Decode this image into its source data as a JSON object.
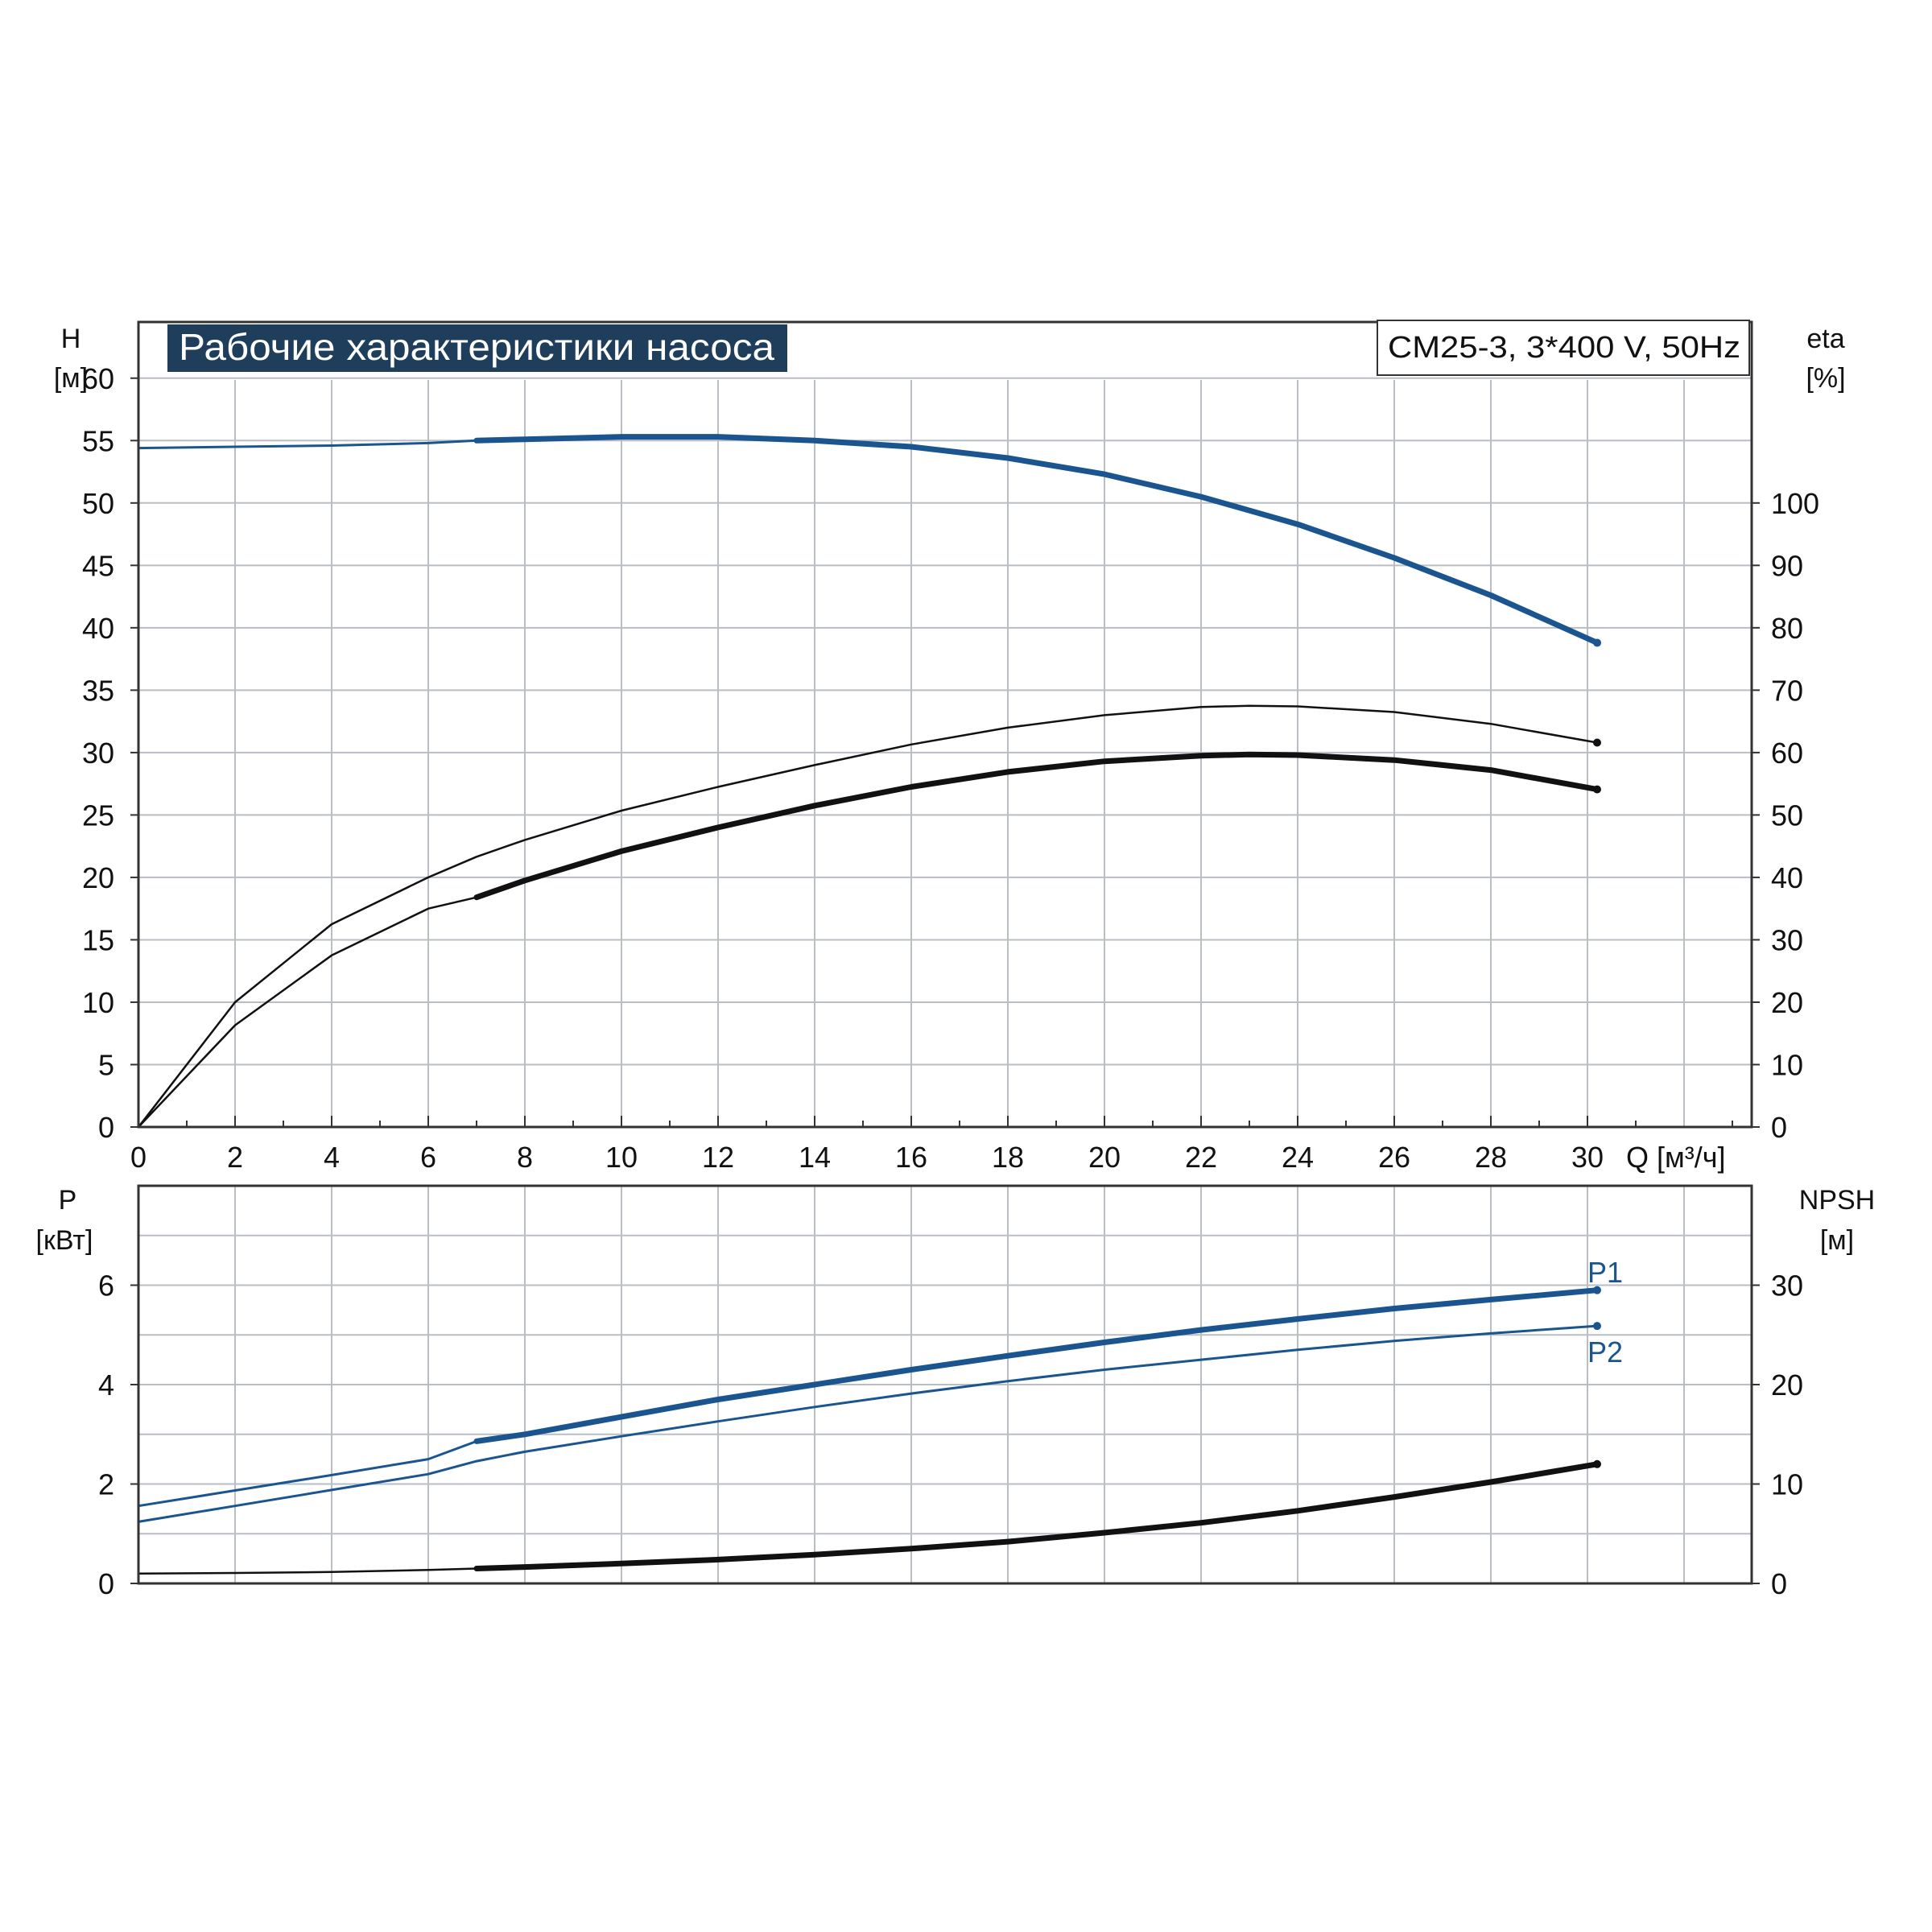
{
  "colors": {
    "blue": "#1a5590",
    "black": "#111111",
    "grid": "#b9bec4",
    "title_bg": "#1f3e5c",
    "title_text": "#ffffff",
    "frame": "#333333"
  },
  "chart_data": [
    {
      "type": "line",
      "title": "Рабочие характеристики насоса",
      "subtitle": "CM25-3, 3*400 V, 50Hz",
      "xlabel": "Q [м³/ч]",
      "ylabel": [
        "H",
        "[м]"
      ],
      "y2label": [
        "eta",
        "[%]"
      ],
      "xlim": [
        0,
        33.4
      ],
      "ylim": [
        0,
        64.5
      ],
      "y2lim": [
        0,
        129
      ],
      "x_ticks": [
        "0",
        "2",
        "4",
        "6",
        "8",
        "10",
        "12",
        "14",
        "16",
        "18",
        "20",
        "22",
        "24",
        "26",
        "28",
        "30"
      ],
      "y_ticks": [
        "0",
        "5",
        "10",
        "15",
        "20",
        "25",
        "30",
        "35",
        "40",
        "45",
        "50",
        "55",
        "60"
      ],
      "y2_ticks": [
        "0",
        "10",
        "20",
        "30",
        "40",
        "50",
        "60",
        "70",
        "80",
        "90",
        "100"
      ],
      "grid": true,
      "series": [
        {
          "axis": "left",
          "color": "blue",
          "x": [
            0,
            2,
            4,
            6,
            7,
            8,
            10,
            12,
            14,
            16,
            18,
            20,
            22,
            24,
            26,
            28,
            30.2
          ],
          "y": [
            54.4,
            54.5,
            54.6,
            54.8,
            55.0,
            55.1,
            55.3,
            55.3,
            55.0,
            54.5,
            53.6,
            52.3,
            50.5,
            48.3,
            45.6,
            42.6,
            38.8
          ],
          "thick_from": 7
        },
        {
          "axis": "right",
          "color": "black",
          "x": [
            0,
            2,
            4,
            6,
            7,
            8,
            10,
            12,
            14,
            16,
            18,
            20,
            22,
            23,
            24,
            26,
            28,
            30.2
          ],
          "y": [
            0,
            20,
            32.5,
            40,
            43.3,
            46,
            50.7,
            54.5,
            58,
            61.3,
            64,
            66,
            67.3,
            67.5,
            67.4,
            66.5,
            64.6,
            61.6
          ],
          "thick_from": null
        },
        {
          "axis": "right",
          "color": "black",
          "x": [
            0,
            2,
            4,
            6,
            7,
            8,
            10,
            12,
            14,
            16,
            18,
            20,
            22,
            23,
            24,
            26,
            28,
            30.2
          ],
          "y": [
            0,
            16.3,
            27.5,
            35,
            36.8,
            39.5,
            44.2,
            48,
            51.5,
            54.5,
            56.9,
            58.6,
            59.5,
            59.7,
            59.6,
            58.8,
            57.2,
            54.1
          ],
          "thick_from": 7
        }
      ]
    },
    {
      "type": "line",
      "xlabel": "",
      "ylabel": [
        "P",
        "[кВт]"
      ],
      "y2label": [
        "NPSH",
        "[м]"
      ],
      "xlim": [
        0,
        33.4
      ],
      "ylim": [
        0,
        8
      ],
      "y2lim": [
        0,
        40
      ],
      "y_ticks": [
        "0",
        "2",
        "4",
        "6"
      ],
      "y2_ticks": [
        "0",
        "10",
        "20",
        "30"
      ],
      "grid": true,
      "series": [
        {
          "name": "P1",
          "axis": "left",
          "color": "blue",
          "x": [
            0,
            2,
            4,
            6,
            7,
            8,
            10,
            12,
            14,
            16,
            18,
            20,
            22,
            24,
            26,
            28,
            30.2
          ],
          "y": [
            1.56,
            1.87,
            2.18,
            2.5,
            2.86,
            3.0,
            3.35,
            3.7,
            4.0,
            4.3,
            4.58,
            4.85,
            5.1,
            5.32,
            5.53,
            5.71,
            5.9
          ],
          "thick_from": 7
        },
        {
          "name": "P2",
          "axis": "left",
          "color": "blue",
          "x": [
            0,
            2,
            4,
            6,
            7,
            8,
            10,
            12,
            14,
            16,
            18,
            20,
            22,
            24,
            26,
            28,
            30.2
          ],
          "y": [
            1.24,
            1.56,
            1.88,
            2.2,
            2.46,
            2.65,
            2.96,
            3.26,
            3.55,
            3.82,
            4.07,
            4.3,
            4.5,
            4.7,
            4.88,
            5.03,
            5.18
          ],
          "thick_from": null
        },
        {
          "axis": "right",
          "color": "black",
          "x": [
            0,
            2,
            4,
            6,
            7,
            8,
            10,
            12,
            14,
            16,
            18,
            20,
            22,
            24,
            26,
            28,
            30.2
          ],
          "y": [
            1.0,
            1.05,
            1.15,
            1.35,
            1.5,
            1.65,
            2.0,
            2.4,
            2.9,
            3.5,
            4.2,
            5.1,
            6.1,
            7.3,
            8.7,
            10.2,
            12.0
          ],
          "thick_from": 7
        }
      ]
    }
  ]
}
